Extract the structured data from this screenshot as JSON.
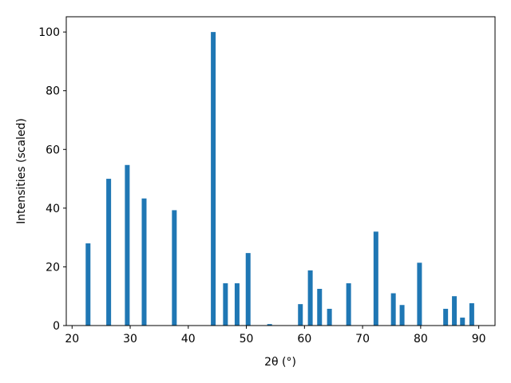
{
  "chart_data": {
    "type": "bar",
    "xlabel": "2θ (°)",
    "ylabel": "Intensities (scaled)",
    "x": [
      22.75,
      26.3,
      29.5,
      32.4,
      37.6,
      44.3,
      46.4,
      48.4,
      50.3,
      54.0,
      59.3,
      61.0,
      62.6,
      64.3,
      67.6,
      72.3,
      75.3,
      76.8,
      79.8,
      84.3,
      85.8,
      87.2,
      88.8
    ],
    "values": [
      28,
      50,
      54.7,
      43.3,
      39.3,
      100,
      14.4,
      14.4,
      24.7,
      0.5,
      7.3,
      18.8,
      12.5,
      5.7,
      14.4,
      32,
      11,
      7,
      21.4,
      5.7,
      10,
      2.7,
      7.6
    ],
    "color": "#1f77b4",
    "xlim": [
      19,
      92.8
    ],
    "xticks": [
      20,
      30,
      40,
      50,
      60,
      70,
      80,
      90
    ],
    "ylim": [
      0,
      105.2
    ],
    "yticks": [
      0,
      20,
      40,
      60,
      80,
      100
    ]
  }
}
